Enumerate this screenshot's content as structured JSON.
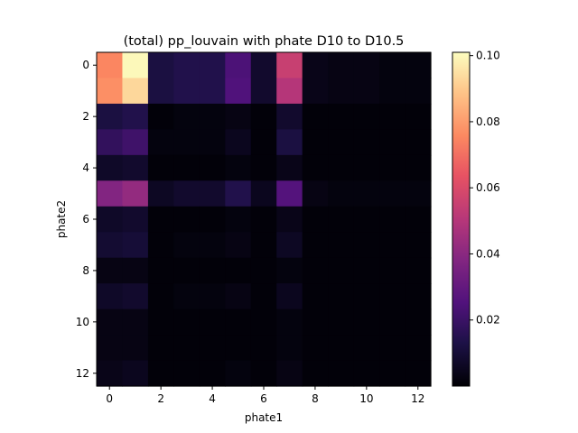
{
  "chart_data": {
    "type": "heatmap",
    "title": "(total) pp_louvain with phate D10 to D10.5",
    "xlabel": "phate1",
    "ylabel": "phate2",
    "x_ticks": [
      "0",
      "2",
      "4",
      "6",
      "8",
      "10",
      "12"
    ],
    "y_ticks": [
      "0",
      "2",
      "4",
      "6",
      "8",
      "10",
      "12"
    ],
    "colorbar_ticks": [
      "0.02",
      "0.04",
      "0.06",
      "0.08",
      "0.10"
    ],
    "colormap": "magma",
    "vmin": 0.0,
    "vmax": 0.101,
    "rows": 13,
    "cols": 13,
    "matrix": [
      [
        0.075,
        0.1,
        0.012,
        0.014,
        0.014,
        0.024,
        0.008,
        0.055,
        0.004,
        0.003,
        0.003,
        0.002,
        0.002
      ],
      [
        0.077,
        0.093,
        0.012,
        0.014,
        0.014,
        0.025,
        0.008,
        0.05,
        0.004,
        0.003,
        0.003,
        0.002,
        0.002
      ],
      [
        0.012,
        0.014,
        0.001,
        0.002,
        0.002,
        0.003,
        0.001,
        0.008,
        0.001,
        0.001,
        0.001,
        0.001,
        0.001
      ],
      [
        0.018,
        0.021,
        0.002,
        0.002,
        0.002,
        0.005,
        0.001,
        0.012,
        0.001,
        0.001,
        0.001,
        0.001,
        0.001
      ],
      [
        0.007,
        0.008,
        0.001,
        0.001,
        0.001,
        0.002,
        0.001,
        0.004,
        0.001,
        0.001,
        0.001,
        0.001,
        0.001
      ],
      [
        0.038,
        0.042,
        0.006,
        0.008,
        0.008,
        0.014,
        0.005,
        0.026,
        0.003,
        0.002,
        0.002,
        0.002,
        0.002
      ],
      [
        0.007,
        0.008,
        0.001,
        0.001,
        0.001,
        0.002,
        0.001,
        0.004,
        0.001,
        0.001,
        0.001,
        0.001,
        0.001
      ],
      [
        0.009,
        0.01,
        0.001,
        0.002,
        0.002,
        0.003,
        0.001,
        0.006,
        0.001,
        0.001,
        0.001,
        0.001,
        0.001
      ],
      [
        0.003,
        0.003,
        0.001,
        0.001,
        0.001,
        0.001,
        0.001,
        0.002,
        0.001,
        0.001,
        0.001,
        0.001,
        0.001
      ],
      [
        0.007,
        0.008,
        0.001,
        0.002,
        0.002,
        0.003,
        0.001,
        0.005,
        0.001,
        0.001,
        0.001,
        0.001,
        0.001
      ],
      [
        0.003,
        0.003,
        0.001,
        0.001,
        0.001,
        0.001,
        0.001,
        0.002,
        0.001,
        0.001,
        0.001,
        0.001,
        0.001
      ],
      [
        0.003,
        0.003,
        0.001,
        0.001,
        0.001,
        0.001,
        0.001,
        0.002,
        0.001,
        0.001,
        0.001,
        0.001,
        0.001
      ],
      [
        0.004,
        0.005,
        0.001,
        0.001,
        0.001,
        0.002,
        0.001,
        0.003,
        0.001,
        0.001,
        0.001,
        0.001,
        0.001
      ]
    ]
  }
}
